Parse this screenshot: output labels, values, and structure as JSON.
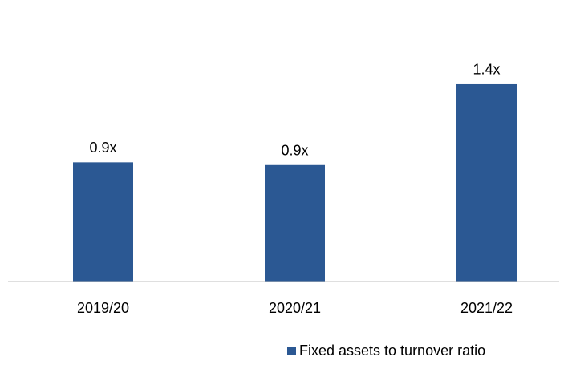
{
  "chart_data": {
    "type": "bar",
    "categories": [
      "2019/20",
      "2020/21",
      "2021/22"
    ],
    "series": [
      {
        "name": "Fixed assets to turnover ratio",
        "color": "#2b5893",
        "values": [
          0.87,
          0.85,
          1.44
        ],
        "value_labels": [
          "0.9x",
          "0.9x",
          "1.4x"
        ]
      }
    ],
    "ylim": [
      0,
      1.75
    ],
    "legend": "bottom"
  }
}
